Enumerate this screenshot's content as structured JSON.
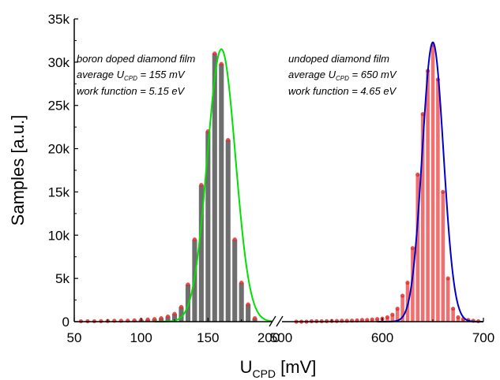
{
  "chart_data": {
    "type": "bar",
    "xlabel_main": "U",
    "xlabel_sub": "CPD",
    "xlabel_unit": " [mV]",
    "ylabel": "Samples [a.u.]",
    "ylim": [
      0,
      35000
    ],
    "yticks": [
      0,
      5000,
      10000,
      15000,
      20000,
      25000,
      30000,
      35000
    ],
    "ytick_labels": [
      "0",
      "5k",
      "10k",
      "15k",
      "20k",
      "25k",
      "30k",
      "35k"
    ],
    "x_segments": [
      {
        "range": [
          50,
          200
        ],
        "ticks": [
          50,
          100,
          150
        ],
        "tick_labels": [
          "50",
          "100",
          "150"
        ]
      },
      {
        "range": [
          500,
          700
        ],
        "ticks": [
          500,
          600,
          700
        ],
        "tick_labels": [
          "500",
          "600",
          "700"
        ]
      }
    ],
    "break_label_left": "200",
    "colors": {
      "boron_bars": "#6e6e6e",
      "boron_fit": "#00e000",
      "undoped_bars": "#f07070",
      "undoped_fit": "#0000cc",
      "marker": "#e03030"
    },
    "series": [
      {
        "segment": 0,
        "bar_color": "#6e6e6e",
        "x": [
          55,
          60,
          65,
          70,
          75,
          80,
          85,
          90,
          95,
          100,
          105,
          110,
          115,
          120,
          125,
          130,
          135,
          140,
          145,
          150,
          155,
          160,
          165,
          170,
          175,
          180,
          185
        ],
        "values": [
          50,
          50,
          50,
          60,
          80,
          100,
          100,
          120,
          150,
          200,
          250,
          300,
          400,
          600,
          900,
          1700,
          4300,
          9500,
          15800,
          22000,
          31000,
          29800,
          21000,
          9500,
          4500,
          2000,
          400
        ]
      },
      {
        "segment": 1,
        "bar_color": "#f07070",
        "x": [
          515,
          520,
          525,
          530,
          535,
          540,
          545,
          550,
          555,
          560,
          565,
          570,
          575,
          580,
          585,
          590,
          595,
          600,
          605,
          610,
          615,
          620,
          625,
          630,
          635,
          640,
          645,
          650,
          655,
          660,
          665,
          670,
          675,
          680,
          685,
          690,
          695
        ],
        "values": [
          0,
          0,
          0,
          50,
          50,
          50,
          60,
          80,
          80,
          100,
          100,
          120,
          150,
          200,
          200,
          250,
          300,
          350,
          500,
          800,
          1500,
          3000,
          4500,
          8500,
          17000,
          24000,
          29000,
          32000,
          28000,
          15000,
          5000,
          1500,
          500,
          300,
          200,
          100,
          50
        ]
      }
    ],
    "fits": [
      {
        "segment": 0,
        "type": "gauss",
        "center": 160,
        "sigma": 10.5,
        "amplitude": 31500,
        "x_range": [
          110,
          200
        ],
        "color": "#00e000"
      },
      {
        "segment": 1,
        "type": "gauss",
        "center": 650,
        "sigma": 10.5,
        "amplitude": 32300,
        "x_range": [
          595,
          700
        ],
        "color": "#0000cc"
      }
    ],
    "annotations": [
      {
        "lines": [
          {
            "text": "boron doped diamond film"
          },
          {
            "pre": "average U",
            "sub": "CPD",
            "post": " = 155 mV"
          },
          {
            "text": "work function =  5.15 eV"
          }
        ]
      },
      {
        "lines": [
          {
            "text": "undoped diamond film"
          },
          {
            "pre": "average U",
            "sub": "CPD",
            "post": " = 650 mV"
          },
          {
            "text": "work function =  4.65 eV"
          }
        ]
      }
    ]
  }
}
